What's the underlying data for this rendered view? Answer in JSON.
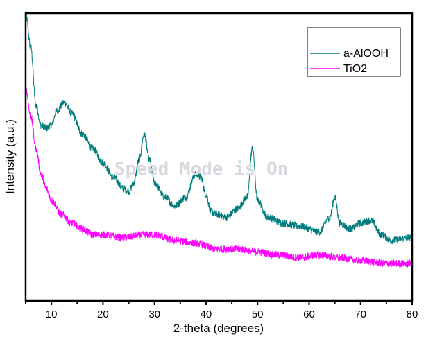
{
  "chart_data": {
    "type": "line",
    "title": "",
    "xlabel": "2-theta (degrees)",
    "ylabel": "Intensity (a.u.)",
    "xlim": [
      5,
      80
    ],
    "ylim": [
      0,
      100
    ],
    "x_ticks": [
      10,
      20,
      30,
      40,
      50,
      60,
      70,
      80
    ],
    "x_minor_ticks": [
      5,
      15,
      25,
      35,
      45,
      55,
      65,
      75
    ],
    "grid": false,
    "legend_position": "top-right",
    "watermark": "Speed Mode is On",
    "series": [
      {
        "name": "a-AlOOH",
        "color": "#007b7b",
        "x": [
          5,
          6,
          7,
          8,
          9,
          10,
          11,
          12.5,
          14,
          16,
          18,
          20,
          22,
          24,
          25,
          26,
          27,
          28,
          29,
          30,
          32,
          34,
          36,
          38,
          39,
          40,
          41,
          42,
          44,
          46,
          48,
          49,
          50,
          52,
          55,
          58,
          62,
          64,
          65,
          66,
          68,
          70,
          72,
          74,
          76,
          80
        ],
        "y": [
          99.8,
          88,
          68,
          61,
          60,
          61,
          66,
          69,
          65,
          58,
          53,
          48,
          43,
          39,
          38,
          41,
          49,
          58,
          49,
          41,
          36,
          33,
          36,
          44,
          43,
          37,
          31,
          30,
          29,
          32,
          36,
          53,
          35,
          29,
          27,
          26,
          24,
          29,
          36,
          27,
          25,
          27,
          28,
          23,
          21,
          22
        ]
      },
      {
        "name": "TiO2",
        "color": "#ff00ff",
        "x": [
          5,
          6,
          7,
          8,
          9,
          10,
          12,
          14,
          16,
          18,
          20,
          24,
          28,
          30,
          34,
          38,
          42,
          46,
          50,
          54,
          58,
          62,
          66,
          70,
          75,
          80
        ],
        "y": [
          74,
          64,
          53,
          44,
          39,
          35,
          30,
          27,
          25,
          23,
          23,
          22,
          23,
          23,
          21,
          20,
          18,
          18,
          17,
          16,
          15,
          16,
          15,
          14,
          13,
          13
        ]
      }
    ]
  }
}
